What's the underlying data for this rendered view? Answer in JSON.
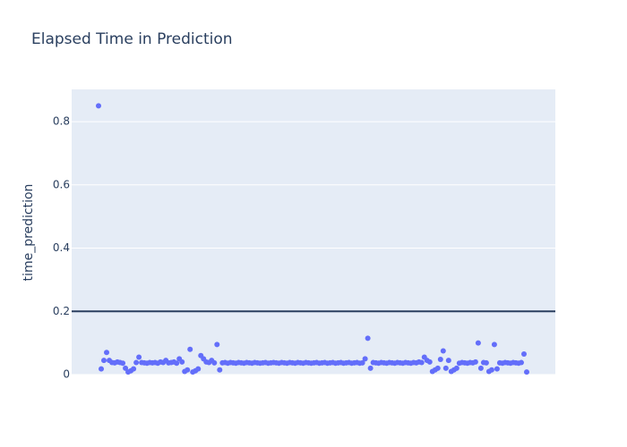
{
  "chart_data": {
    "type": "scatter",
    "title": "Elapsed Time in Prediction",
    "y_label": "time_prediction",
    "color": "#636efa",
    "background": "#e5ecf6",
    "grid": true,
    "hline": 0.2,
    "hline_color": "#2a3f5f",
    "ylim": [
      0,
      0.902
    ],
    "yticks": [
      0,
      0.2,
      0.4,
      0.6,
      0.8
    ],
    "values": [
      0.85,
      0.018,
      0.045,
      0.07,
      0.045,
      0.038,
      0.037,
      0.04,
      0.038,
      0.036,
      0.02,
      0.008,
      0.012,
      0.018,
      0.038,
      0.055,
      0.038,
      0.037,
      0.036,
      0.038,
      0.037,
      0.038,
      0.036,
      0.04,
      0.038,
      0.045,
      0.037,
      0.038,
      0.04,
      0.036,
      0.05,
      0.04,
      0.01,
      0.015,
      0.08,
      0.008,
      0.012,
      0.018,
      0.06,
      0.05,
      0.04,
      0.038,
      0.045,
      0.037,
      0.095,
      0.015,
      0.037,
      0.038,
      0.036,
      0.038,
      0.037,
      0.036,
      0.038,
      0.037,
      0.036,
      0.038,
      0.037,
      0.036,
      0.038,
      0.037,
      0.036,
      0.037,
      0.038,
      0.036,
      0.037,
      0.038,
      0.037,
      0.036,
      0.038,
      0.037,
      0.036,
      0.038,
      0.037,
      0.036,
      0.038,
      0.037,
      0.036,
      0.038,
      0.037,
      0.036,
      0.037,
      0.038,
      0.036,
      0.037,
      0.038,
      0.036,
      0.037,
      0.038,
      0.036,
      0.037,
      0.038,
      0.036,
      0.037,
      0.038,
      0.036,
      0.037,
      0.038,
      0.036,
      0.037,
      0.05,
      0.115,
      0.02,
      0.038,
      0.037,
      0.036,
      0.038,
      0.037,
      0.036,
      0.038,
      0.037,
      0.036,
      0.038,
      0.037,
      0.036,
      0.038,
      0.037,
      0.036,
      0.038,
      0.037,
      0.04,
      0.038,
      0.055,
      0.045,
      0.04,
      0.01,
      0.015,
      0.02,
      0.048,
      0.075,
      0.02,
      0.045,
      0.01,
      0.015,
      0.02,
      0.036,
      0.038,
      0.037,
      0.036,
      0.038,
      0.037,
      0.04,
      0.1,
      0.02,
      0.038,
      0.037,
      0.01,
      0.015,
      0.095,
      0.018,
      0.037,
      0.036,
      0.038,
      0.037,
      0.036,
      0.038,
      0.037,
      0.036,
      0.038,
      0.065,
      0.008
    ]
  }
}
